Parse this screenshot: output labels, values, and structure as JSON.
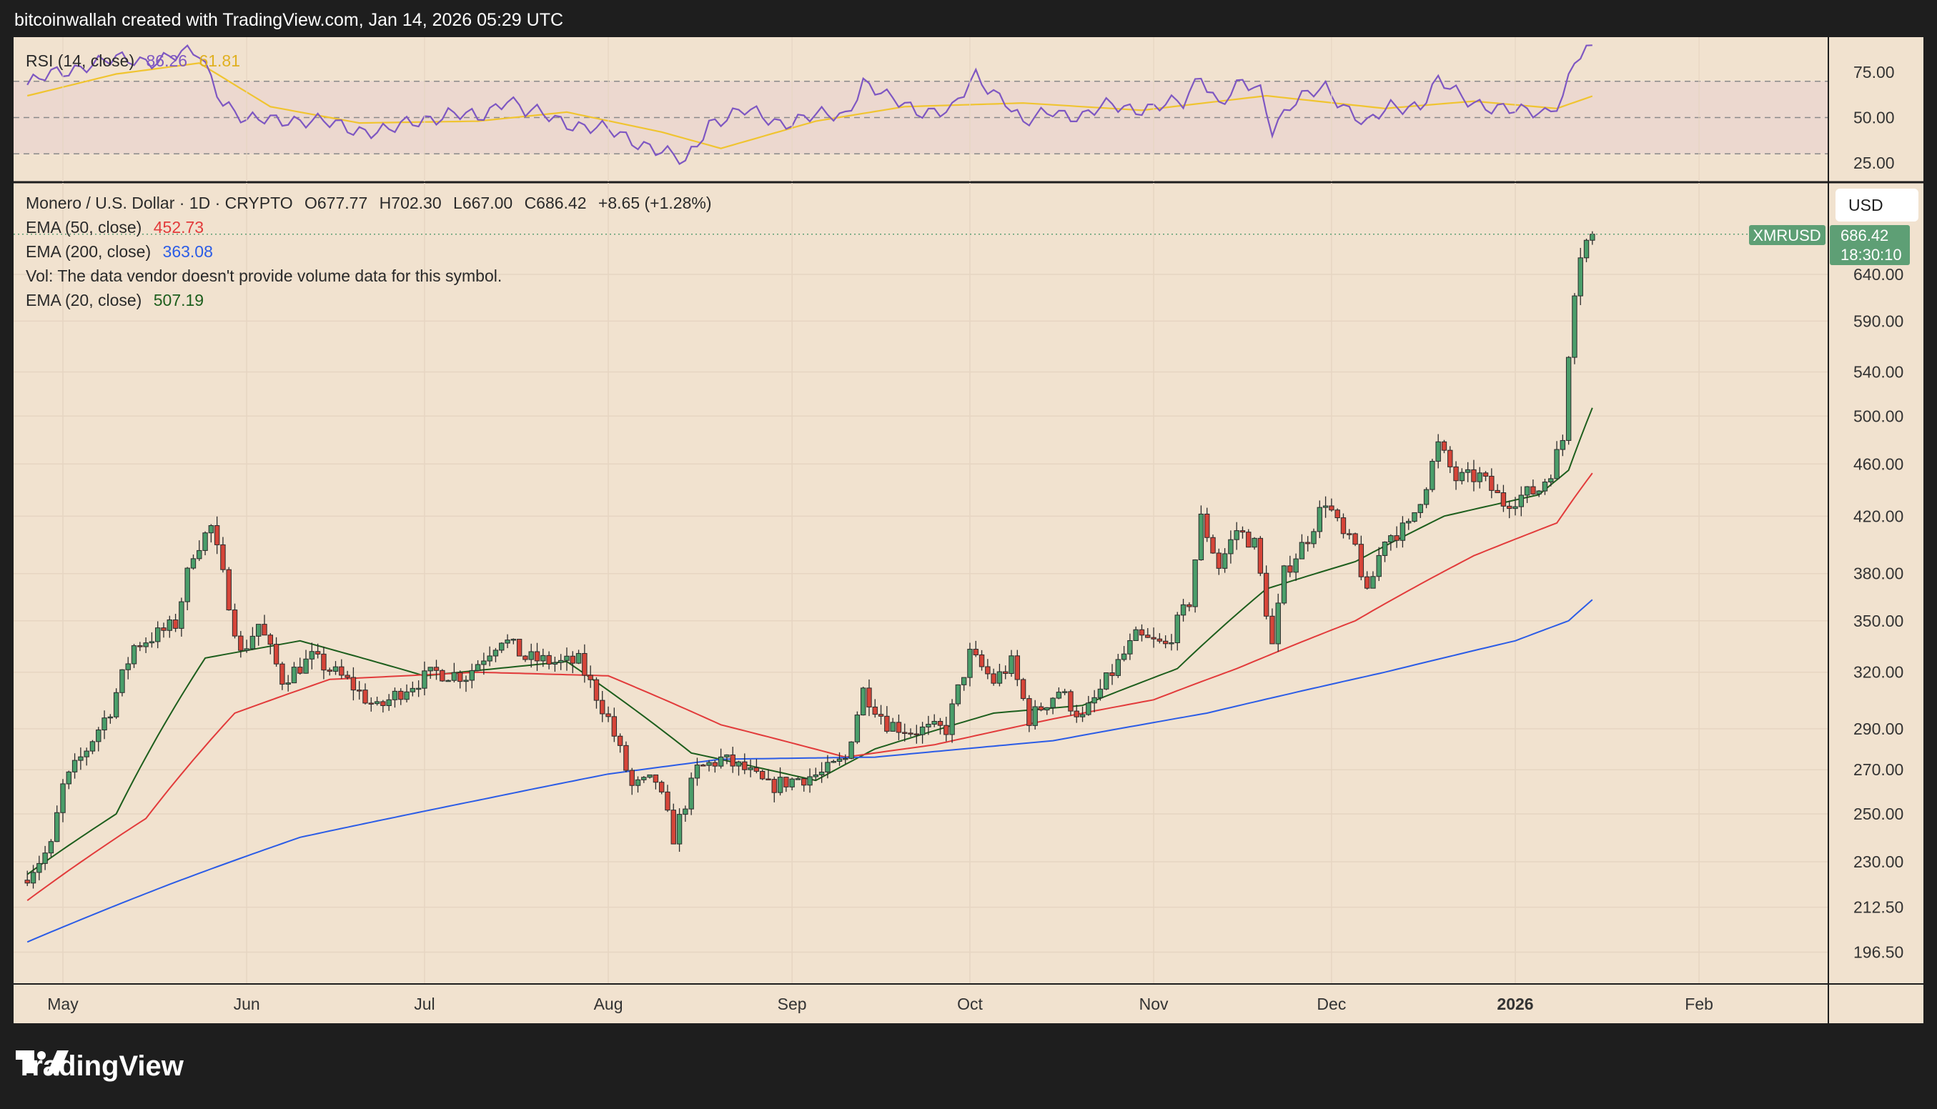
{
  "header": {
    "text": "bitcoinwallah created with TradingView.com, Jan 14, 2026 05:29 UTC"
  },
  "branding": {
    "logo_text": "TradingView",
    "icon": "tradingview-logo-icon"
  },
  "currency_button": {
    "label": "USD"
  },
  "colors": {
    "background": "#f1e2cf",
    "frame": "#1e1e1e",
    "up": "#4a9e6a",
    "down": "#d64539",
    "ema20": "#1d5e1d",
    "ema50": "#e23b3b",
    "ema200": "#2b5ce6",
    "rsi": "#7e57c2",
    "rsi_ma": "#f0c430",
    "tag": "#5e9f75"
  },
  "rsi_panel": {
    "label": "RSI (14, close)",
    "value": "86.26",
    "ma_value": "61.81",
    "levels": [
      70,
      50,
      30
    ],
    "ticks": [
      "75.00",
      "50.00",
      "25.00"
    ]
  },
  "legend": {
    "symbol_line": "Monero / U.S. Dollar · 1D · CRYPTO",
    "open": "O677.77",
    "high": "H702.30",
    "low": "L667.00",
    "close": "C686.42",
    "change": "+8.65 (+1.28%)",
    "ema50": {
      "label": "EMA (50, close)",
      "value": "452.73"
    },
    "ema200": {
      "label": "EMA (200, close)",
      "value": "363.08"
    },
    "vol_note": "Vol: The data vendor doesn't provide volume data for this symbol.",
    "ema20": {
      "label": "EMA (20, close)",
      "value": "507.19"
    }
  },
  "price_tag": {
    "symbol": "XMRUSD",
    "price": "686.42",
    "countdown": "18:30:10"
  },
  "chart_data": {
    "type": "candlestick",
    "title": "Monero / U.S. Dollar · 1D · CRYPTO",
    "y_scale": "log",
    "ylim": [
      185,
      720
    ],
    "y_ticks": [
      "640.00",
      "590.00",
      "540.00",
      "500.00",
      "460.00",
      "420.00",
      "380.00",
      "350.00",
      "320.00",
      "290.00",
      "270.00",
      "250.00",
      "230.00",
      "212.50",
      "196.50"
    ],
    "x_ticks": [
      "May",
      "Jun",
      "Jul",
      "Aug",
      "Sep",
      "Oct",
      "Nov",
      "Dec",
      "2026",
      "Feb"
    ],
    "close_anchors": [
      [
        "2025-04-25",
        225
      ],
      [
        "2025-04-29",
        236
      ],
      [
        "2025-05-01",
        262
      ],
      [
        "2025-05-05",
        280
      ],
      [
        "2025-05-09",
        300
      ],
      [
        "2025-05-13",
        335
      ],
      [
        "2025-05-17",
        342
      ],
      [
        "2025-05-20",
        348
      ],
      [
        "2025-05-23",
        395
      ],
      [
        "2025-05-26",
        412
      ],
      [
        "2025-05-28",
        378
      ],
      [
        "2025-05-31",
        330
      ],
      [
        "2025-06-03",
        348
      ],
      [
        "2025-06-07",
        316
      ],
      [
        "2025-06-12",
        328
      ],
      [
        "2025-06-18",
        315
      ],
      [
        "2025-06-23",
        300
      ],
      [
        "2025-06-28",
        312
      ],
      [
        "2025-07-03",
        320
      ],
      [
        "2025-07-08",
        318
      ],
      [
        "2025-07-14",
        340
      ],
      [
        "2025-07-18",
        328
      ],
      [
        "2025-07-24",
        325
      ],
      [
        "2025-07-27",
        326
      ],
      [
        "2025-08-01",
        295
      ],
      [
        "2025-08-05",
        262
      ],
      [
        "2025-08-09",
        265
      ],
      [
        "2025-08-12",
        240
      ],
      [
        "2025-08-16",
        270
      ],
      [
        "2025-08-20",
        275
      ],
      [
        "2025-08-24",
        270
      ],
      [
        "2025-08-28",
        262
      ],
      [
        "2025-09-02",
        266
      ],
      [
        "2025-09-06",
        268
      ],
      [
        "2025-09-10",
        275
      ],
      [
        "2025-09-13",
        310
      ],
      [
        "2025-09-17",
        293
      ],
      [
        "2025-09-21",
        289
      ],
      [
        "2025-09-27",
        290
      ],
      [
        "2025-10-01",
        330
      ],
      [
        "2025-10-05",
        315
      ],
      [
        "2025-10-08",
        325
      ],
      [
        "2025-10-11",
        295
      ],
      [
        "2025-10-16",
        310
      ],
      [
        "2025-10-20",
        295
      ],
      [
        "2025-10-24",
        315
      ],
      [
        "2025-10-29",
        340
      ],
      [
        "2025-11-03",
        335
      ],
      [
        "2025-11-07",
        362
      ],
      [
        "2025-11-09",
        418
      ],
      [
        "2025-11-12",
        385
      ],
      [
        "2025-11-15",
        410
      ],
      [
        "2025-11-18",
        400
      ],
      [
        "2025-11-21",
        335
      ],
      [
        "2025-11-23",
        380
      ],
      [
        "2025-11-27",
        405
      ],
      [
        "2025-11-30",
        432
      ],
      [
        "2025-12-03",
        405
      ],
      [
        "2025-12-05",
        398
      ],
      [
        "2025-12-07",
        365
      ],
      [
        "2025-12-10",
        405
      ],
      [
        "2025-12-14",
        412
      ],
      [
        "2025-12-17",
        445
      ],
      [
        "2025-12-19",
        475
      ],
      [
        "2025-12-22",
        448
      ],
      [
        "2025-12-26",
        450
      ],
      [
        "2025-12-30",
        430
      ],
      [
        "2026-01-02",
        435
      ],
      [
        "2026-01-05",
        440
      ],
      [
        "2026-01-07",
        455
      ],
      [
        "2026-01-09",
        480
      ],
      [
        "2026-01-10",
        560
      ],
      [
        "2026-01-11",
        625
      ],
      [
        "2026-01-12",
        665
      ],
      [
        "2026-01-13",
        678
      ],
      [
        "2026-01-14",
        686.42
      ]
    ],
    "ema_anchors": {
      "EMA 20": [
        [
          "2025-04-25",
          225
        ],
        [
          "2025-05-10",
          250
        ],
        [
          "2025-05-25",
          328
        ],
        [
          "2025-06-10",
          338
        ],
        [
          "2025-07-01",
          318
        ],
        [
          "2025-07-25",
          326
        ],
        [
          "2025-08-15",
          278
        ],
        [
          "2025-09-05",
          265
        ],
        [
          "2025-09-15",
          280
        ],
        [
          "2025-10-05",
          298
        ],
        [
          "2025-10-20",
          302
        ],
        [
          "2025-11-05",
          322
        ],
        [
          "2025-11-20",
          370
        ],
        [
          "2025-12-05",
          388
        ],
        [
          "2025-12-20",
          420
        ],
        [
          "2026-01-05",
          436
        ],
        [
          "2026-01-10",
          455
        ],
        [
          "2026-01-14",
          507.19
        ]
      ],
      "EMA 50": [
        [
          "2025-04-25",
          215
        ],
        [
          "2025-05-15",
          248
        ],
        [
          "2025-05-30",
          298
        ],
        [
          "2025-06-15",
          316
        ],
        [
          "2025-07-10",
          320
        ],
        [
          "2025-08-01",
          318
        ],
        [
          "2025-08-20",
          292
        ],
        [
          "2025-09-10",
          276
        ],
        [
          "2025-09-25",
          282
        ],
        [
          "2025-10-15",
          295
        ],
        [
          "2025-11-01",
          305
        ],
        [
          "2025-11-15",
          322
        ],
        [
          "2025-12-05",
          350
        ],
        [
          "2025-12-25",
          392
        ],
        [
          "2026-01-08",
          415
        ],
        [
          "2026-01-14",
          452.73
        ]
      ],
      "EMA 200": [
        [
          "2025-04-25",
          200
        ],
        [
          "2025-05-20",
          222
        ],
        [
          "2025-06-10",
          240
        ],
        [
          "2025-07-10",
          256
        ],
        [
          "2025-08-01",
          268
        ],
        [
          "2025-08-20",
          275
        ],
        [
          "2025-09-15",
          276
        ],
        [
          "2025-10-15",
          284
        ],
        [
          "2025-11-10",
          298
        ],
        [
          "2025-12-10",
          320
        ],
        [
          "2026-01-01",
          338
        ],
        [
          "2026-01-10",
          350
        ],
        [
          "2026-01-14",
          363.08
        ]
      ]
    },
    "rsi_anchors": [
      [
        "2025-04-25",
        68
      ],
      [
        "2025-05-05",
        80
      ],
      [
        "2025-05-15",
        82
      ],
      [
        "2025-05-24",
        85
      ],
      [
        "2025-05-28",
        60
      ],
      [
        "2025-06-01",
        47
      ],
      [
        "2025-06-08",
        50
      ],
      [
        "2025-06-15",
        46
      ],
      [
        "2025-06-20",
        44
      ],
      [
        "2025-06-25",
        42
      ],
      [
        "2025-07-01",
        50
      ],
      [
        "2025-07-05",
        52
      ],
      [
        "2025-07-10",
        49
      ],
      [
        "2025-07-15",
        62
      ],
      [
        "2025-07-18",
        53
      ],
      [
        "2025-07-25",
        48
      ],
      [
        "2025-08-01",
        42
      ],
      [
        "2025-08-08",
        35
      ],
      [
        "2025-08-14",
        24
      ],
      [
        "2025-08-18",
        48
      ],
      [
        "2025-08-24",
        53
      ],
      [
        "2025-08-30",
        48
      ],
      [
        "2025-09-05",
        50
      ],
      [
        "2025-09-10",
        52
      ],
      [
        "2025-09-13",
        70
      ],
      [
        "2025-09-17",
        60
      ],
      [
        "2025-09-22",
        55
      ],
      [
        "2025-09-28",
        53
      ],
      [
        "2025-10-02",
        73
      ],
      [
        "2025-10-07",
        60
      ],
      [
        "2025-10-10",
        45
      ],
      [
        "2025-10-15",
        55
      ],
      [
        "2025-10-20",
        50
      ],
      [
        "2025-10-25",
        57
      ],
      [
        "2025-11-01",
        55
      ],
      [
        "2025-11-06",
        58
      ],
      [
        "2025-11-09",
        75
      ],
      [
        "2025-11-12",
        57
      ],
      [
        "2025-11-16",
        68
      ],
      [
        "2025-11-19",
        65
      ],
      [
        "2025-11-21",
        45
      ],
      [
        "2025-11-24",
        57
      ],
      [
        "2025-11-30",
        66
      ],
      [
        "2025-12-04",
        55
      ],
      [
        "2025-12-07",
        46
      ],
      [
        "2025-12-11",
        55
      ],
      [
        "2025-12-16",
        58
      ],
      [
        "2025-12-19",
        70
      ],
      [
        "2025-12-23",
        60
      ],
      [
        "2025-12-28",
        57
      ],
      [
        "2026-01-02",
        52
      ],
      [
        "2026-01-06",
        53
      ],
      [
        "2026-01-09",
        62
      ],
      [
        "2026-01-11",
        82
      ],
      [
        "2026-01-14",
        86.26
      ]
    ],
    "rsi_ma_anchors": [
      [
        "2025-04-25",
        62
      ],
      [
        "2025-05-10",
        74
      ],
      [
        "2025-05-24",
        80
      ],
      [
        "2025-06-05",
        56
      ],
      [
        "2025-06-20",
        47
      ],
      [
        "2025-07-10",
        48
      ],
      [
        "2025-07-25",
        53
      ],
      [
        "2025-08-10",
        42
      ],
      [
        "2025-08-20",
        33
      ],
      [
        "2025-09-05",
        48
      ],
      [
        "2025-09-20",
        56
      ],
      [
        "2025-10-10",
        58
      ],
      [
        "2025-10-30",
        54
      ],
      [
        "2025-11-20",
        62
      ],
      [
        "2025-12-10",
        55
      ],
      [
        "2025-12-25",
        59
      ],
      [
        "2026-01-08",
        55
      ],
      [
        "2026-01-14",
        61.81
      ]
    ]
  }
}
